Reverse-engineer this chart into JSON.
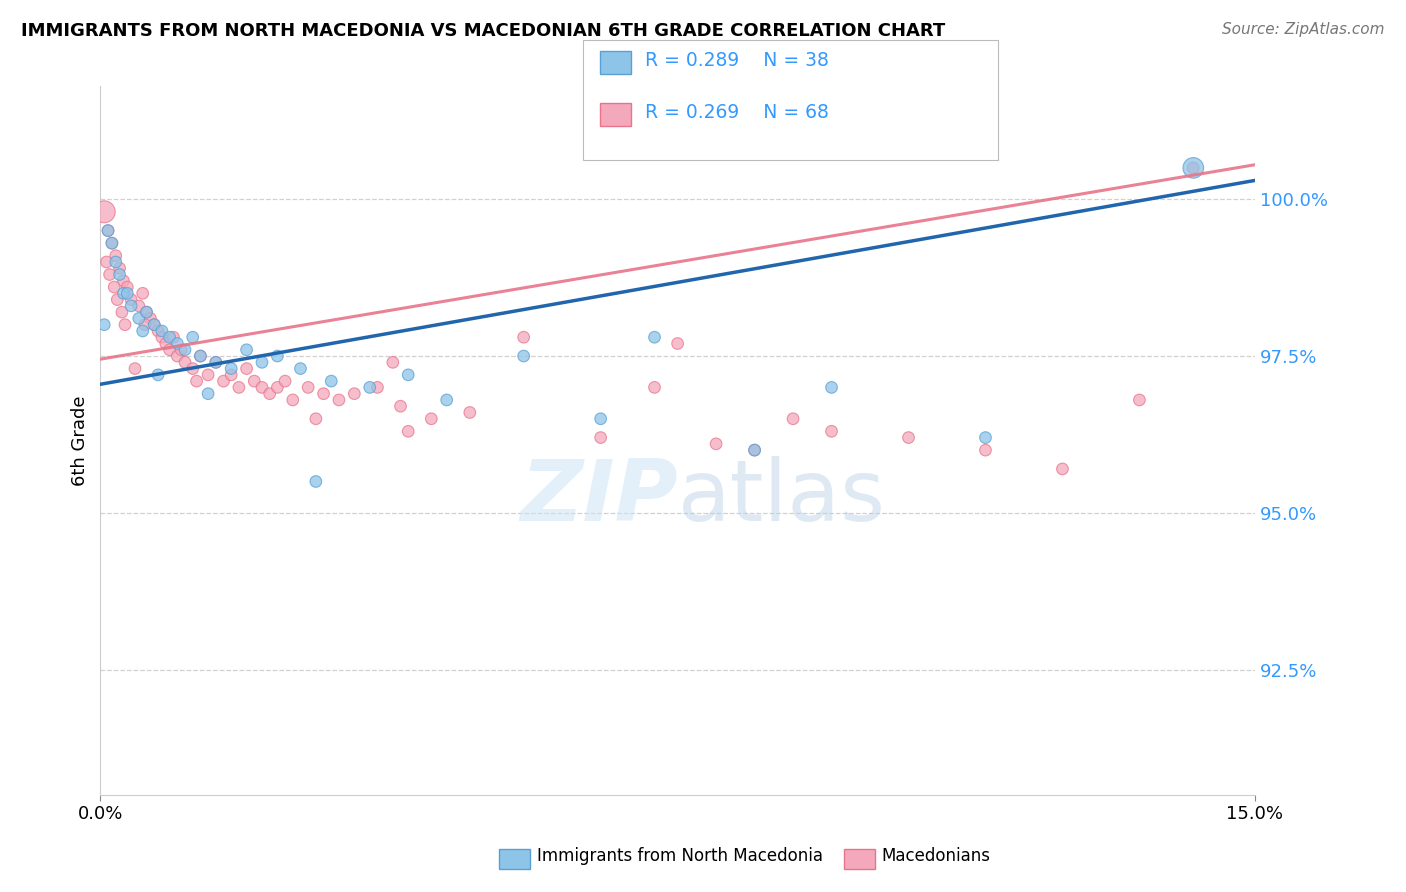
{
  "title": "IMMIGRANTS FROM NORTH MACEDONIA VS MACEDONIAN 6TH GRADE CORRELATION CHART",
  "source_text": "Source: ZipAtlas.com",
  "ylabel": "6th Grade",
  "watermark_zip": "ZIP",
  "watermark_atlas": "atlas",
  "legend_blue_label": "Immigrants from North Macedonia",
  "legend_pink_label": "Macedonians",
  "legend_blue_r": "R = 0.289",
  "legend_blue_n": "N = 38",
  "legend_pink_r": "R = 0.269",
  "legend_pink_n": "N = 68",
  "xlim": [
    0.0,
    15.0
  ],
  "ylim": [
    90.5,
    101.8
  ],
  "yticks": [
    92.5,
    95.0,
    97.5,
    100.0
  ],
  "yticklabels": [
    "92.5%",
    "95.0%",
    "97.5%",
    "100.0%"
  ],
  "xticks": [
    0.0,
    15.0
  ],
  "xticklabels": [
    "0.0%",
    "15.0%"
  ],
  "blue_color": "#8ec4e8",
  "blue_edge_color": "#5a9fd4",
  "pink_color": "#f4a8bc",
  "pink_edge_color": "#e8748a",
  "blue_line_color": "#2166ac",
  "pink_line_color": "#e8748a",
  "grid_color": "#cccccc",
  "tick_color": "#3399ff",
  "blue_line_y0": 97.05,
  "blue_line_y1": 100.3,
  "pink_line_y0": 97.45,
  "pink_line_y1": 100.55,
  "blue_x": [
    0.1,
    0.15,
    0.2,
    0.25,
    0.3,
    0.4,
    0.5,
    0.6,
    0.7,
    0.8,
    0.9,
    1.0,
    1.1,
    1.2,
    1.3,
    1.5,
    1.7,
    1.9,
    2.1,
    2.3,
    2.6,
    3.0,
    3.5,
    4.0,
    4.5,
    5.5,
    6.5,
    7.2,
    8.5,
    9.5,
    11.5,
    14.2,
    0.05,
    0.35,
    0.55,
    0.75,
    1.4,
    2.8
  ],
  "blue_y": [
    99.5,
    99.3,
    99.0,
    98.8,
    98.5,
    98.3,
    98.1,
    98.2,
    98.0,
    97.9,
    97.8,
    97.7,
    97.6,
    97.8,
    97.5,
    97.4,
    97.3,
    97.6,
    97.4,
    97.5,
    97.3,
    97.1,
    97.0,
    97.2,
    96.8,
    97.5,
    96.5,
    97.8,
    96.0,
    97.0,
    96.2,
    100.5,
    98.0,
    98.5,
    97.9,
    97.2,
    96.9,
    95.5
  ],
  "blue_sizes": [
    70,
    70,
    70,
    70,
    70,
    70,
    70,
    70,
    70,
    70,
    70,
    70,
    70,
    70,
    70,
    70,
    70,
    70,
    70,
    70,
    70,
    70,
    70,
    70,
    70,
    70,
    70,
    70,
    70,
    70,
    70,
    220,
    70,
    70,
    70,
    70,
    70,
    70
  ],
  "pink_x": [
    0.05,
    0.1,
    0.15,
    0.2,
    0.25,
    0.3,
    0.35,
    0.4,
    0.5,
    0.55,
    0.6,
    0.65,
    0.7,
    0.75,
    0.8,
    0.85,
    0.9,
    0.95,
    1.0,
    1.05,
    1.1,
    1.2,
    1.3,
    1.4,
    1.5,
    1.6,
    1.7,
    1.8,
    1.9,
    2.0,
    2.1,
    2.2,
    2.3,
    2.4,
    2.5,
    2.7,
    2.9,
    3.1,
    3.3,
    3.6,
    3.9,
    4.3,
    4.8,
    5.5,
    6.5,
    7.5,
    8.5,
    9.5,
    10.5,
    11.5,
    12.5,
    0.45,
    1.25,
    2.8,
    0.08,
    0.12,
    0.18,
    0.22,
    0.28,
    0.32,
    4.0,
    9.0,
    7.2,
    8.0,
    13.5,
    14.2,
    0.58,
    3.8
  ],
  "pink_y": [
    99.8,
    99.5,
    99.3,
    99.1,
    98.9,
    98.7,
    98.6,
    98.4,
    98.3,
    98.5,
    98.2,
    98.1,
    98.0,
    97.9,
    97.8,
    97.7,
    97.6,
    97.8,
    97.5,
    97.6,
    97.4,
    97.3,
    97.5,
    97.2,
    97.4,
    97.1,
    97.2,
    97.0,
    97.3,
    97.1,
    97.0,
    96.9,
    97.0,
    97.1,
    96.8,
    97.0,
    96.9,
    96.8,
    96.9,
    97.0,
    96.7,
    96.5,
    96.6,
    97.8,
    96.2,
    97.7,
    96.0,
    96.3,
    96.2,
    96.0,
    95.7,
    97.3,
    97.1,
    96.5,
    99.0,
    98.8,
    98.6,
    98.4,
    98.2,
    98.0,
    96.3,
    96.5,
    97.0,
    96.1,
    96.8,
    100.5,
    98.0,
    97.4
  ],
  "pink_sizes": [
    250,
    70,
    70,
    70,
    70,
    70,
    70,
    70,
    70,
    70,
    70,
    70,
    70,
    70,
    70,
    70,
    70,
    70,
    70,
    70,
    70,
    70,
    70,
    70,
    70,
    70,
    70,
    70,
    70,
    70,
    70,
    70,
    70,
    70,
    70,
    70,
    70,
    70,
    70,
    70,
    70,
    70,
    70,
    70,
    70,
    70,
    70,
    70,
    70,
    70,
    70,
    70,
    70,
    70,
    70,
    70,
    70,
    70,
    70,
    70,
    70,
    70,
    70,
    70,
    70,
    70,
    70,
    70
  ]
}
